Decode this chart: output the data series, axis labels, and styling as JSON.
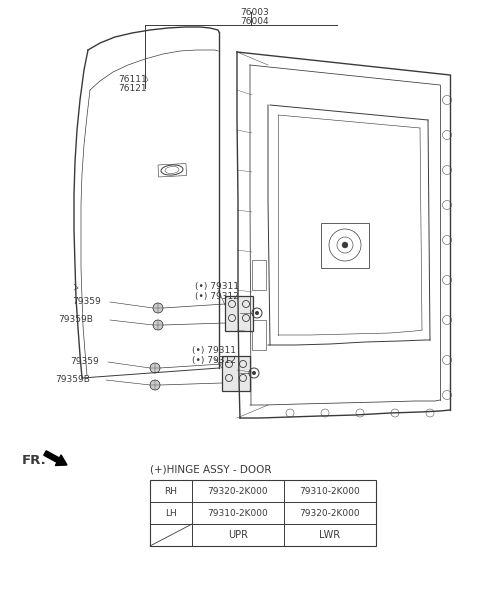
{
  "bg_color": "#ffffff",
  "fig_width": 4.8,
  "fig_height": 5.98,
  "dpi": 100,
  "line_color": "#3a3a3a",
  "text_color": "#3a3a3a",
  "font_size_labels": 6.5,
  "font_size_table": 7.5,
  "table_title": "(+)HINGE ASSY - DOOR",
  "table_cols": [
    "",
    "UPR",
    "LWR"
  ],
  "table_rows": [
    [
      "LH",
      "79310-2K000",
      "79320-2K000"
    ],
    [
      "RH",
      "79320-2K000",
      "79310-2K000"
    ]
  ],
  "label_76003": "76003",
  "label_76004": "76004",
  "label_76111": "76111",
  "label_76121": "76121",
  "label_79311": "(•) 79311",
  "label_79312": "(•) 79312",
  "label_79359": "79359",
  "label_79359B": "79359B"
}
